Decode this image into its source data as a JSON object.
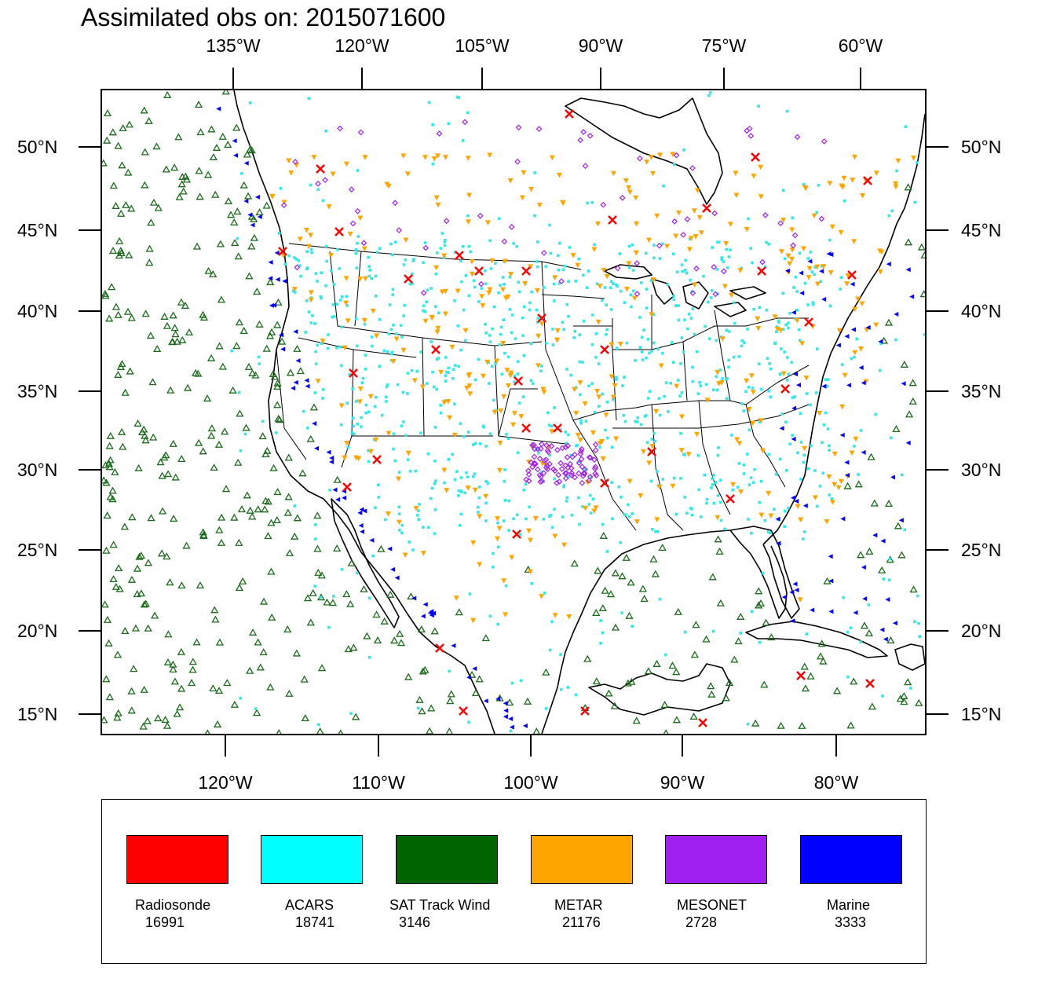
{
  "title": "Assimilated obs on: 2015071600",
  "map": {
    "top_axis_labels": [
      "135°W",
      "120°W",
      "105°W",
      "90°W",
      "75°W",
      "60°W"
    ],
    "bottom_axis_labels": [
      "120°W",
      "110°W",
      "100°W",
      "90°W",
      "80°W"
    ],
    "left_axis_labels": [
      "50°N",
      "45°N",
      "40°N",
      "35°N",
      "30°N",
      "25°N",
      "20°N",
      "15°N"
    ],
    "right_axis_labels": [
      "50°N",
      "45°N",
      "40°N",
      "35°N",
      "30°N",
      "25°N",
      "20°N",
      "15°N"
    ]
  },
  "legend": [
    {
      "name": "Radiosonde",
      "count": "16991",
      "color": "#ff0000"
    },
    {
      "name": "ACARS",
      "count": "18741",
      "color": "#00ffff"
    },
    {
      "name": "SAT Track Wind",
      "count": "3146",
      "color": "#006400"
    },
    {
      "name": "METAR",
      "count": "21176",
      "color": "#ffa500"
    },
    {
      "name": "MESONET",
      "count": "2728",
      "color": "#a020f0"
    },
    {
      "name": "Marine",
      "count": "3333",
      "color": "#0000ff"
    }
  ],
  "colors": {
    "land_outline": "#000000",
    "acars_marker": "#33e8e8",
    "satwind_marker": "#1a6b1a",
    "metar_marker": "#ffa500",
    "mesonet_marker": "#a020f0",
    "marine_marker": "#0000ff",
    "radiosonde_marker": "#ff0000"
  }
}
